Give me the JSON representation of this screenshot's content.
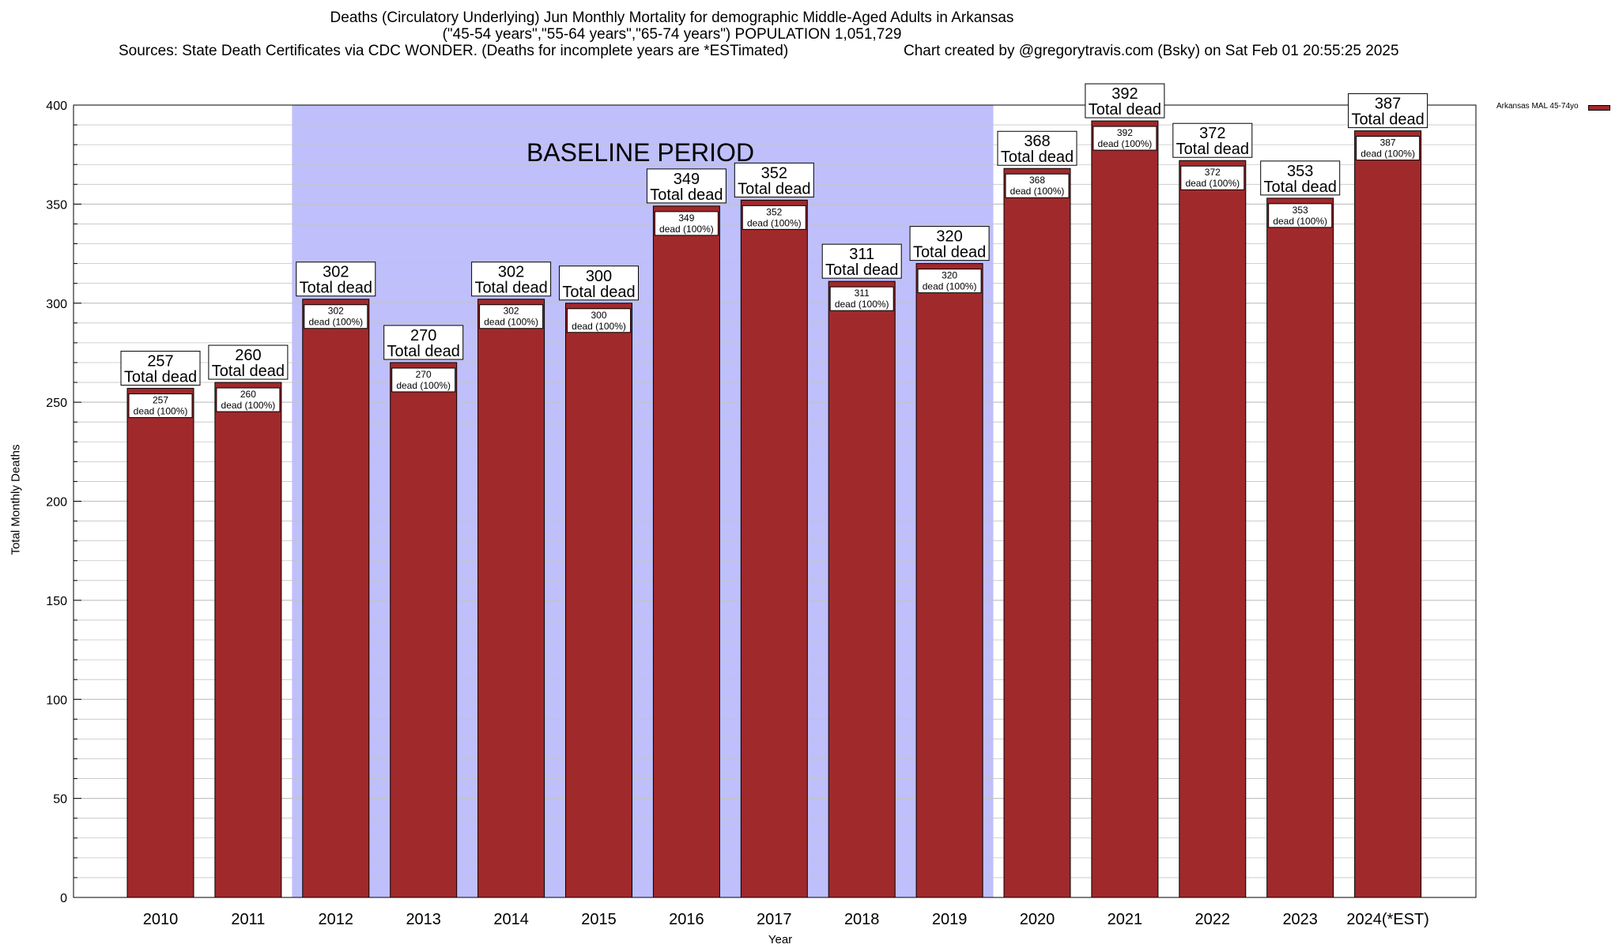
{
  "header": {
    "title_line1": "Deaths (Circulatory Underlying) Jun Monthly Mortality for demographic Middle-Aged Adults in Arkansas",
    "title_line2": "(\"45-54 years\",\"55-64 years\",\"65-74 years\") POPULATION 1,051,729",
    "sources": "Sources: State Death Certificates via CDC WONDER. (Deaths for incomplete years are *ESTimated)",
    "credit": "Chart created by @gregorytravis.com (Bsky) on Sat Feb 01 20:55:25 2025"
  },
  "chart_data": {
    "type": "bar",
    "xlabel": "Year",
    "ylabel": "Total Monthly Deaths",
    "ylim": [
      0,
      400
    ],
    "yticks": [
      0,
      50,
      100,
      150,
      200,
      250,
      300,
      350,
      400
    ],
    "grid": true,
    "legend": {
      "position": "top-right",
      "label": "Arkansas MAL 45-74yo"
    },
    "categories": [
      "2010",
      "2011",
      "2012",
      "2013",
      "2014",
      "2015",
      "2016",
      "2017",
      "2018",
      "2019",
      "2020",
      "2021",
      "2022",
      "2023",
      "2024(*EST)"
    ],
    "series": [
      {
        "name": "Arkansas MAL 45-74yo",
        "values": [
          257,
          260,
          302,
          270,
          302,
          300,
          349,
          352,
          311,
          320,
          368,
          392,
          372,
          353,
          387
        ]
      }
    ],
    "total_label": "Total dead",
    "inner_label": "dead (100%)",
    "baseline": {
      "label": "BASELINE PERIOD",
      "start": "2012",
      "end": "2019"
    },
    "colors": {
      "bar": "#a0292b",
      "baseline": "#bfbffb",
      "grid": "#c4c4c4"
    }
  }
}
